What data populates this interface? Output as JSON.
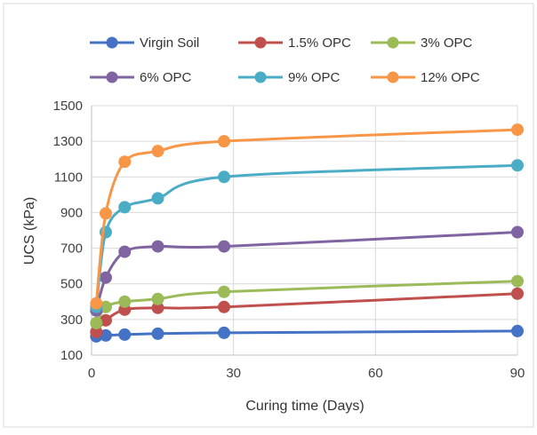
{
  "chart_data": {
    "type": "line",
    "xlabel": "Curing time (Days)",
    "ylabel": "UCS (kPa)",
    "xlim": [
      0,
      90
    ],
    "ylim": [
      100,
      1500
    ],
    "xticks": [
      0,
      30,
      60,
      90
    ],
    "yticks": [
      100,
      300,
      500,
      700,
      900,
      1100,
      1300,
      1500
    ],
    "grid": true,
    "legend_position": "top",
    "smooth": true,
    "x": [
      1,
      3,
      7,
      14,
      28,
      90
    ],
    "series": [
      {
        "name": "Virgin Soil",
        "color": "#4472c4",
        "values": [
          205,
          210,
          215,
          220,
          225,
          235
        ]
      },
      {
        "name": "1.5% OPC",
        "color": "#c0504d",
        "values": [
          230,
          295,
          355,
          365,
          370,
          445
        ]
      },
      {
        "name": "3% OPC",
        "color": "#9bbb59",
        "values": [
          280,
          370,
          400,
          415,
          455,
          515
        ]
      },
      {
        "name": "6% OPC",
        "color": "#8064a2",
        "values": [
          350,
          535,
          680,
          710,
          710,
          790
        ]
      },
      {
        "name": "9% OPC",
        "color": "#4bacc6",
        "values": [
          370,
          790,
          930,
          980,
          1100,
          1165
        ]
      },
      {
        "name": "12% OPC",
        "color": "#f79646",
        "values": [
          390,
          895,
          1185,
          1245,
          1300,
          1365
        ]
      }
    ]
  }
}
